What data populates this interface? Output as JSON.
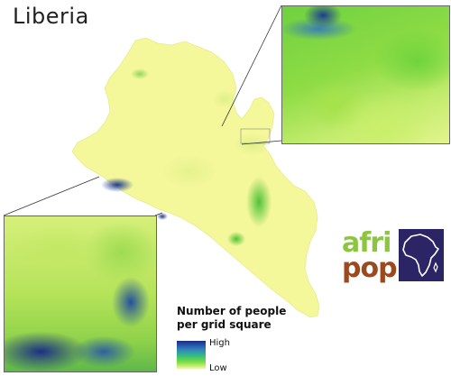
{
  "map": {
    "title": "Liberia",
    "colors": {
      "land_low": "#f4f79a",
      "land_mid": "#a6e24a",
      "land_high": "#1c2a8a",
      "logo_green": "#8cc63f",
      "logo_brown": "#9a4a1e",
      "logo_box": "#2c2565"
    }
  },
  "legend": {
    "title_line1": "Number of people",
    "title_line2": "per grid square",
    "high_label": "High",
    "low_label": "Low"
  },
  "logo": {
    "line1": "afri",
    "line2": "pop"
  }
}
